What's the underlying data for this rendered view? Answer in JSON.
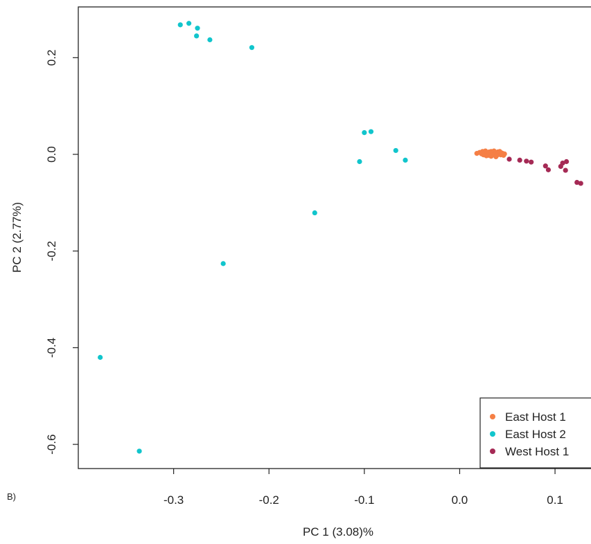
{
  "chart_data": {
    "type": "scatter",
    "xlabel": "PC 1 (3.08)%",
    "ylabel": "PC 2 (2.77%)",
    "xlim": [
      -0.4,
      0.145
    ],
    "ylim": [
      -0.65,
      0.305
    ],
    "x_ticks": [
      -0.3,
      -0.2,
      -0.1,
      0.0,
      0.1
    ],
    "x_tick_labels": [
      "-0.3",
      "-0.2",
      "-0.1",
      "0.0",
      "0.1"
    ],
    "y_ticks": [
      0.2,
      0.0,
      -0.2,
      -0.4,
      -0.6
    ],
    "y_tick_labels": [
      "0.2",
      "0.0",
      "-0.2",
      "-0.4",
      "-0.6"
    ],
    "grid": false,
    "legend_position": "bottom-right",
    "panel_label": "B)",
    "series": [
      {
        "name": "East Host 1",
        "color": "#f57f45",
        "points": [
          [
            0.018,
            0.002
          ],
          [
            0.021,
            0.004
          ],
          [
            0.023,
            0.001
          ],
          [
            0.024,
            0.006
          ],
          [
            0.025,
            -0.001
          ],
          [
            0.026,
            0.003
          ],
          [
            0.027,
            0.007
          ],
          [
            0.028,
            0.0
          ],
          [
            0.029,
            0.004
          ],
          [
            0.03,
            -0.002
          ],
          [
            0.031,
            0.005
          ],
          [
            0.032,
            0.001
          ],
          [
            0.033,
            0.006
          ],
          [
            0.034,
            -0.001
          ],
          [
            0.035,
            0.003
          ],
          [
            0.036,
            0.007
          ],
          [
            0.037,
            0.0
          ],
          [
            0.038,
            0.004
          ],
          [
            0.039,
            -0.002
          ],
          [
            0.04,
            0.005
          ],
          [
            0.041,
            0.001
          ],
          [
            0.042,
            0.006
          ],
          [
            0.043,
            -0.001
          ],
          [
            0.044,
            0.003
          ],
          [
            0.045,
            0.002
          ],
          [
            0.046,
            -0.002
          ],
          [
            0.047,
            0.001
          ],
          [
            0.033,
            -0.004
          ],
          [
            0.028,
            -0.003
          ],
          [
            0.038,
            -0.005
          ]
        ]
      },
      {
        "name": "East Host 2",
        "color": "#11c5cc",
        "points": [
          [
            -0.293,
            0.268
          ],
          [
            -0.284,
            0.271
          ],
          [
            -0.275,
            0.261
          ],
          [
            -0.276,
            0.245
          ],
          [
            -0.262,
            0.237
          ],
          [
            -0.218,
            0.221
          ],
          [
            -0.1,
            0.045
          ],
          [
            -0.093,
            0.047
          ],
          [
            -0.067,
            0.008
          ],
          [
            -0.105,
            -0.015
          ],
          [
            -0.057,
            -0.012
          ],
          [
            -0.152,
            -0.121
          ],
          [
            -0.248,
            -0.226
          ],
          [
            -0.377,
            -0.42
          ],
          [
            -0.336,
            -0.614
          ]
        ]
      },
      {
        "name": "West Host 1",
        "color": "#a52a55",
        "points": [
          [
            0.052,
            -0.01
          ],
          [
            0.063,
            -0.012
          ],
          [
            0.07,
            -0.014
          ],
          [
            0.075,
            -0.016
          ],
          [
            0.09,
            -0.024
          ],
          [
            0.093,
            -0.032
          ],
          [
            0.106,
            -0.025
          ],
          [
            0.108,
            -0.018
          ],
          [
            0.111,
            -0.033
          ],
          [
            0.112,
            -0.015
          ],
          [
            0.123,
            -0.058
          ],
          [
            0.127,
            -0.06
          ]
        ]
      }
    ]
  }
}
